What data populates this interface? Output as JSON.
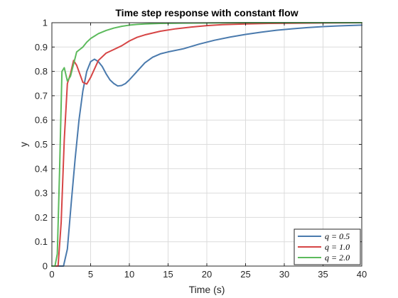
{
  "chart_data": {
    "type": "line",
    "title": "Time step response with constant flow",
    "xlabel": "Time (s)",
    "ylabel": "y",
    "xlim": [
      0,
      40
    ],
    "ylim": [
      0,
      1
    ],
    "x_ticks": [
      0,
      5,
      10,
      15,
      20,
      25,
      30,
      35,
      40
    ],
    "y_ticks": [
      0,
      0.1,
      0.2,
      0.3,
      0.4,
      0.5,
      0.6,
      0.7,
      0.8,
      0.9,
      1
    ],
    "x_tick_labels": [
      "0",
      "5",
      "10",
      "15",
      "20",
      "25",
      "30",
      "35",
      "40"
    ],
    "y_tick_labels": [
      "0",
      "0.1",
      "0.2",
      "0.3",
      "0.4",
      "0.5",
      "0.6",
      "0.7",
      "0.8",
      "0.9",
      "1"
    ],
    "grid": true,
    "legend_position": "bottom-right",
    "series": [
      {
        "name": "q = 0.5",
        "color": "#4a7aad",
        "x": [
          0,
          1.5,
          2.0,
          2.5,
          3.0,
          3.5,
          4.0,
          4.5,
          5.0,
          5.5,
          6.0,
          6.5,
          7.0,
          7.5,
          8.0,
          8.5,
          9.0,
          9.5,
          10,
          11,
          12,
          13,
          14,
          15,
          17,
          19,
          21,
          23,
          25,
          27,
          29,
          31,
          33,
          35,
          37,
          40
        ],
        "y": [
          0,
          0,
          0.07,
          0.26,
          0.44,
          0.6,
          0.72,
          0.8,
          0.84,
          0.85,
          0.84,
          0.82,
          0.79,
          0.765,
          0.75,
          0.74,
          0.742,
          0.75,
          0.765,
          0.8,
          0.835,
          0.858,
          0.872,
          0.88,
          0.893,
          0.912,
          0.928,
          0.941,
          0.952,
          0.961,
          0.969,
          0.975,
          0.98,
          0.984,
          0.987,
          0.99
        ]
      },
      {
        "name": "q = 1.0",
        "color": "#d64545",
        "x": [
          0,
          0.8,
          1.2,
          1.6,
          2.0,
          2.4,
          2.8,
          3.2,
          3.6,
          4.0,
          4.5,
          5.0,
          5.5,
          6.0,
          7.0,
          8.0,
          9.0,
          10,
          11,
          12,
          14,
          16,
          18,
          20,
          22,
          25,
          28,
          31,
          35,
          40
        ],
        "y": [
          0,
          0,
          0.18,
          0.52,
          0.75,
          0.79,
          0.845,
          0.825,
          0.79,
          0.755,
          0.748,
          0.775,
          0.81,
          0.845,
          0.875,
          0.89,
          0.905,
          0.925,
          0.94,
          0.95,
          0.965,
          0.975,
          0.982,
          0.988,
          0.992,
          0.995,
          0.997,
          0.998,
          0.999,
          1.0
        ]
      },
      {
        "name": "q = 2.0",
        "color": "#5cba5c",
        "x": [
          0,
          0.4,
          0.7,
          1.0,
          1.3,
          1.6,
          2.0,
          2.4,
          2.8,
          3.2,
          3.6,
          4.0,
          4.5,
          5.0,
          5.5,
          6.0,
          7.0,
          8.0,
          9.0,
          10,
          11,
          12,
          14,
          16,
          20,
          25,
          30,
          40
        ],
        "y": [
          0,
          0,
          0.05,
          0.4,
          0.8,
          0.815,
          0.76,
          0.78,
          0.83,
          0.88,
          0.89,
          0.9,
          0.92,
          0.935,
          0.945,
          0.955,
          0.968,
          0.978,
          0.985,
          0.99,
          0.993,
          0.995,
          0.997,
          0.998,
          0.999,
          1.0,
          1.0,
          1.0
        ]
      }
    ]
  }
}
